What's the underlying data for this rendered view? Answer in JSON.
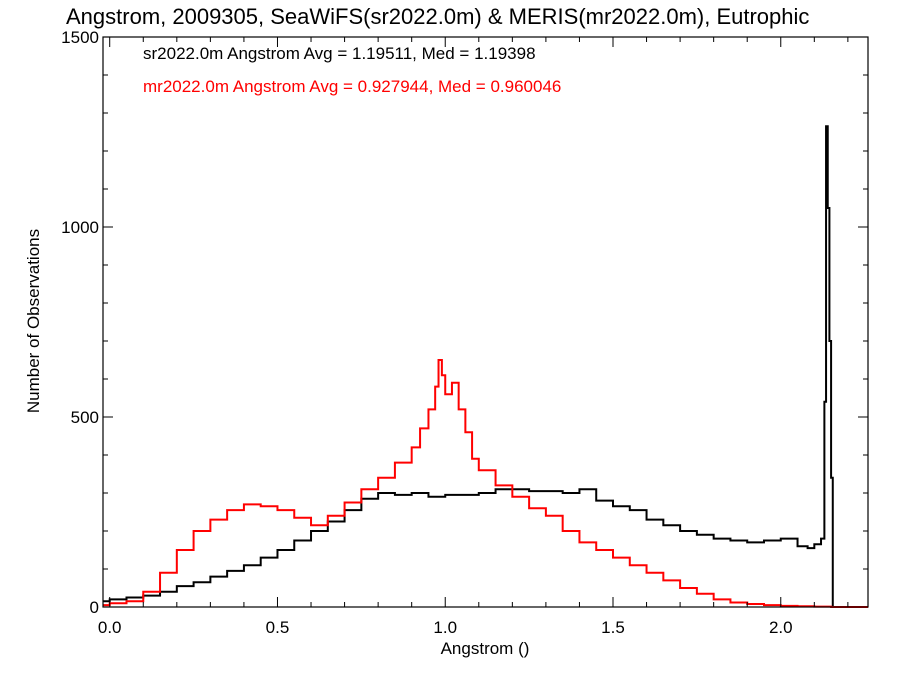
{
  "chart_data": {
    "type": "line",
    "title": "Angstrom, 2009305, SeaWiFS(sr2022.0m) & MERIS(mr2022.0m), Eutrophic",
    "xlabel": "Angstrom ()",
    "ylabel": "Number of Observations",
    "xlim": [
      -0.02,
      2.26
    ],
    "ylim": [
      0,
      1500
    ],
    "xticks": [
      0.0,
      0.5,
      1.0,
      1.5,
      2.0
    ],
    "xtick_labels": [
      "0.0",
      "0.5",
      "1.0",
      "1.5",
      "2.0"
    ],
    "yticks": [
      0,
      500,
      1000,
      1500
    ],
    "ytick_labels": [
      "0",
      "500",
      "1000",
      "1500"
    ],
    "grid": false,
    "annotations": [
      {
        "text": "sr2022.0m Angstrom Avg = 1.19511, Med = 1.19398",
        "color": "#000000"
      },
      {
        "text": "mr2022.0m Angstrom Avg = 0.927944, Med = 0.960046",
        "color": "#ff0000"
      }
    ],
    "series": [
      {
        "color": "#000000",
        "step": true,
        "x": [
          -0.02,
          0.0,
          0.05,
          0.1,
          0.15,
          0.2,
          0.25,
          0.3,
          0.35,
          0.4,
          0.45,
          0.5,
          0.55,
          0.6,
          0.65,
          0.7,
          0.75,
          0.8,
          0.85,
          0.9,
          0.95,
          1.0,
          1.05,
          1.1,
          1.15,
          1.2,
          1.25,
          1.3,
          1.35,
          1.4,
          1.45,
          1.5,
          1.55,
          1.6,
          1.65,
          1.7,
          1.75,
          1.8,
          1.85,
          1.9,
          1.95,
          2.0,
          2.05,
          2.08,
          2.1,
          2.12,
          2.13,
          2.135,
          2.14,
          2.145,
          2.15,
          2.155,
          2.16,
          2.18,
          2.26
        ],
        "y": [
          15,
          20,
          25,
          30,
          40,
          55,
          65,
          80,
          95,
          110,
          130,
          150,
          175,
          200,
          225,
          255,
          285,
          300,
          295,
          300,
          290,
          295,
          295,
          300,
          310,
          310,
          305,
          305,
          300,
          310,
          280,
          265,
          255,
          230,
          215,
          200,
          190,
          180,
          175,
          170,
          175,
          180,
          160,
          155,
          165,
          180,
          540,
          1265,
          1050,
          700,
          340,
          0,
          0,
          0,
          0
        ]
      },
      {
        "color": "#ff0000",
        "step": true,
        "x": [
          -0.02,
          0.0,
          0.05,
          0.1,
          0.15,
          0.2,
          0.25,
          0.3,
          0.35,
          0.4,
          0.45,
          0.5,
          0.55,
          0.6,
          0.65,
          0.7,
          0.75,
          0.8,
          0.85,
          0.9,
          0.925,
          0.95,
          0.97,
          0.98,
          0.99,
          1.0,
          1.02,
          1.04,
          1.06,
          1.08,
          1.1,
          1.15,
          1.2,
          1.25,
          1.3,
          1.35,
          1.4,
          1.45,
          1.5,
          1.55,
          1.6,
          1.65,
          1.7,
          1.75,
          1.8,
          1.85,
          1.9,
          1.95,
          2.0,
          2.05,
          2.1,
          2.15,
          2.2,
          2.26
        ],
        "y": [
          5,
          10,
          15,
          40,
          90,
          150,
          200,
          230,
          255,
          270,
          265,
          255,
          235,
          215,
          240,
          275,
          310,
          340,
          380,
          420,
          470,
          520,
          580,
          650,
          610,
          560,
          590,
          520,
          460,
          390,
          360,
          320,
          290,
          260,
          240,
          200,
          170,
          150,
          130,
          110,
          90,
          70,
          50,
          35,
          20,
          12,
          8,
          5,
          3,
          2,
          1,
          0,
          0,
          0
        ]
      }
    ]
  }
}
